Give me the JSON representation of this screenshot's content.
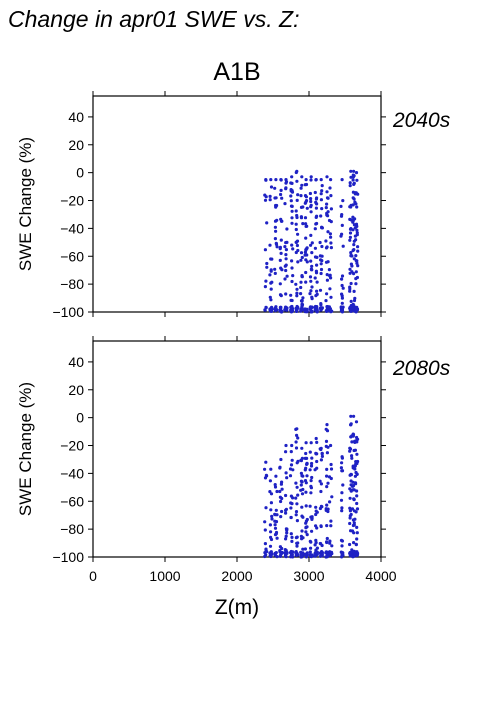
{
  "header": {
    "title": "Change in apr01 SWE vs. Z:"
  },
  "figure": {
    "scenario": "A1B"
  },
  "colors": {
    "points": "#1f22c4",
    "period_label": "#2326b8",
    "axis": "#000000"
  },
  "chart_data": [
    {
      "type": "scatter",
      "panel": "top",
      "period_label": "2040s",
      "xlabel": "",
      "ylabel": "SWE Change (%)",
      "xlim": [
        0,
        4000
      ],
      "ylim": [
        -100,
        55
      ],
      "x_ticks": [
        0,
        1000,
        2000,
        3000,
        4000
      ],
      "y_ticks": [
        40,
        20,
        0,
        -20,
        -40,
        -60,
        -80,
        -100
      ],
      "x_tick_labels_shown": false,
      "columns": [
        {
          "x": 2400,
          "ymin": -100,
          "ymax": -5,
          "n": 14
        },
        {
          "x": 2470,
          "ymin": -100,
          "ymax": -5,
          "n": 22
        },
        {
          "x": 2540,
          "ymin": -100,
          "ymax": -5,
          "n": 22
        },
        {
          "x": 2610,
          "ymin": -100,
          "ymax": -5,
          "n": 24
        },
        {
          "x": 2680,
          "ymin": -100,
          "ymax": -5,
          "n": 26
        },
        {
          "x": 2760,
          "ymin": -100,
          "ymax": -3,
          "n": 30
        },
        {
          "x": 2830,
          "ymin": -100,
          "ymax": 1,
          "n": 30
        },
        {
          "x": 2900,
          "ymin": -100,
          "ymax": -3,
          "n": 32
        },
        {
          "x": 2960,
          "ymin": -100,
          "ymax": -5,
          "n": 34
        },
        {
          "x": 3030,
          "ymin": -100,
          "ymax": -3,
          "n": 34
        },
        {
          "x": 3100,
          "ymin": -100,
          "ymax": -5,
          "n": 32
        },
        {
          "x": 3170,
          "ymin": -100,
          "ymax": -5,
          "n": 28
        },
        {
          "x": 3250,
          "ymin": -100,
          "ymax": -3,
          "n": 30
        },
        {
          "x": 3300,
          "ymin": -100,
          "ymax": -5,
          "n": 20
        },
        {
          "x": 3460,
          "ymin": -100,
          "ymax": -5,
          "n": 26
        },
        {
          "x": 3580,
          "ymin": -100,
          "ymax": 1,
          "n": 40
        },
        {
          "x": 3620,
          "ymin": -100,
          "ymax": 1,
          "n": 40
        },
        {
          "x": 3660,
          "ymin": -100,
          "ymax": 0,
          "n": 36
        }
      ]
    },
    {
      "type": "scatter",
      "panel": "bottom",
      "period_label": "2080s",
      "xlabel": "Z(m)",
      "ylabel": "SWE Change (%)",
      "xlim": [
        0,
        4000
      ],
      "ylim": [
        -100,
        55
      ],
      "x_ticks": [
        0,
        1000,
        2000,
        3000,
        4000
      ],
      "y_ticks": [
        40,
        20,
        0,
        -20,
        -40,
        -60,
        -80,
        -100
      ],
      "x_tick_labels_shown": true,
      "columns": [
        {
          "x": 2400,
          "ymin": -100,
          "ymax": -32,
          "n": 14
        },
        {
          "x": 2470,
          "ymin": -100,
          "ymax": -37,
          "n": 18
        },
        {
          "x": 2540,
          "ymin": -100,
          "ymax": -42,
          "n": 20
        },
        {
          "x": 2610,
          "ymin": -100,
          "ymax": -30,
          "n": 22
        },
        {
          "x": 2680,
          "ymin": -100,
          "ymax": -20,
          "n": 24
        },
        {
          "x": 2760,
          "ymin": -100,
          "ymax": -20,
          "n": 26
        },
        {
          "x": 2830,
          "ymin": -100,
          "ymax": -8,
          "n": 28
        },
        {
          "x": 2900,
          "ymin": -100,
          "ymax": -22,
          "n": 30
        },
        {
          "x": 2960,
          "ymin": -100,
          "ymax": -18,
          "n": 30
        },
        {
          "x": 3030,
          "ymin": -100,
          "ymax": -18,
          "n": 30
        },
        {
          "x": 3100,
          "ymin": -100,
          "ymax": -15,
          "n": 28
        },
        {
          "x": 3170,
          "ymin": -100,
          "ymax": -22,
          "n": 26
        },
        {
          "x": 3250,
          "ymin": -100,
          "ymax": -5,
          "n": 28
        },
        {
          "x": 3300,
          "ymin": -100,
          "ymax": -20,
          "n": 18
        },
        {
          "x": 3460,
          "ymin": -100,
          "ymax": -28,
          "n": 22
        },
        {
          "x": 3580,
          "ymin": -100,
          "ymax": 1,
          "n": 40
        },
        {
          "x": 3620,
          "ymin": -100,
          "ymax": 1,
          "n": 40
        },
        {
          "x": 3660,
          "ymin": -100,
          "ymax": -3,
          "n": 36
        }
      ]
    }
  ]
}
